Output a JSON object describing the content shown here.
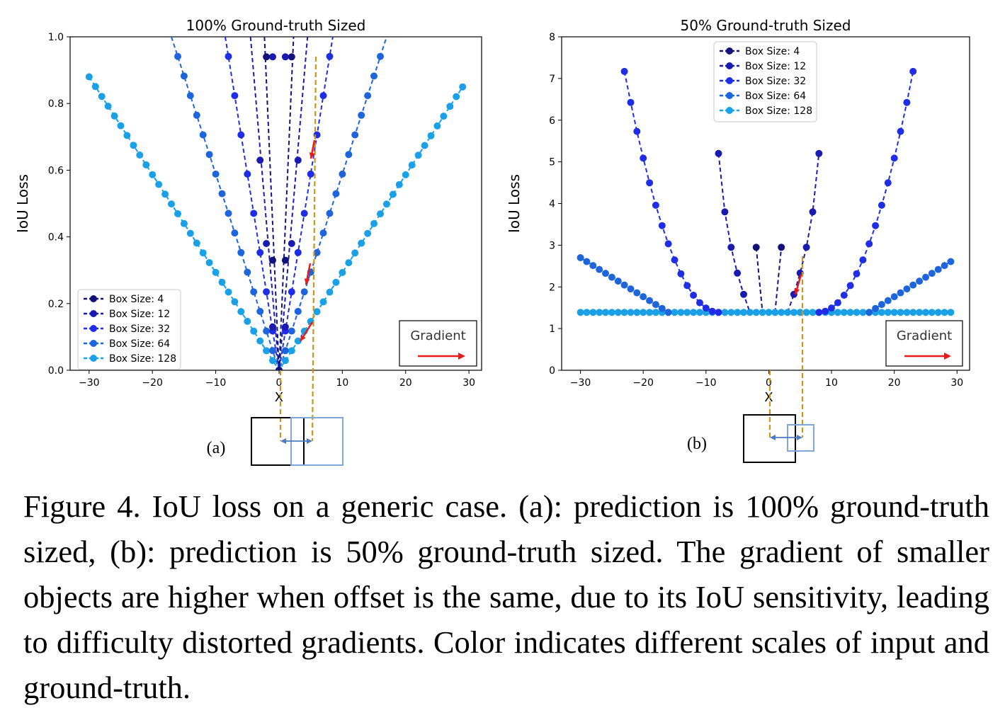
{
  "chart_data": [
    {
      "type": "line",
      "panel_label": "(a)",
      "title": "100% Ground-truth Sized",
      "xlabel": "",
      "ylabel": "IoU Loss",
      "xlim": [
        -33,
        32
      ],
      "ylim": [
        0,
        1.0
      ],
      "xticks": [
        -30,
        -20,
        -10,
        0,
        10,
        20,
        30
      ],
      "yticks": [
        0.0,
        0.2,
        0.4,
        0.6,
        0.8,
        1.0
      ],
      "xtick_labels": [
        "−30",
        "−20",
        "−10",
        "0",
        "10",
        "20",
        "30"
      ],
      "ytick_labels": [
        "0.0",
        "0.2",
        "0.4",
        "0.6",
        "0.8",
        "1.0"
      ],
      "x_marker": "X",
      "legend": {
        "position": "lower-left"
      },
      "series": [
        {
          "name": "Box Size: 4",
          "color": "#13127a",
          "points": [
            [
              -1,
              0.33
            ],
            [
              0,
              0.0
            ],
            [
              1,
              0.33
            ],
            [
              -2,
              0.94
            ],
            [
              2,
              0.94
            ]
          ],
          "line_top_x": [
            -2.3,
            2.3
          ]
        },
        {
          "name": "Box Size: 12",
          "color": "#1a1ab0",
          "points": [
            [
              -3,
              0.63
            ],
            [
              -2,
              0.38
            ],
            [
              -1,
              0.13
            ],
            [
              0,
              0.0
            ],
            [
              1,
              0.13
            ],
            [
              2,
              0.38
            ],
            [
              3,
              0.63
            ],
            [
              -1,
              0.94
            ],
            [
              1,
              0.94
            ]
          ],
          "line_top_x": [
            -4.5,
            4.5
          ]
        },
        {
          "name": "Box Size: 32",
          "color": "#1f2ee6",
          "points": [],
          "line_top_x": [
            -8.5,
            8.5
          ]
        },
        {
          "name": "Box Size: 64",
          "color": "#1e64dc",
          "points": [],
          "line_top_x": [
            -17,
            17
          ]
        },
        {
          "name": "Box Size: 128",
          "color": "#19a0e6",
          "points": [],
          "line_end": [
            [
              -30,
              0.88
            ],
            [
              29,
              0.85
            ]
          ]
        }
      ],
      "annotation": {
        "text": "Gradient",
        "arrow_color": "#e81a1a"
      }
    },
    {
      "type": "line",
      "panel_label": "(b)",
      "title": "50% Ground-truth Sized",
      "xlabel": "",
      "ylabel": "IoU Loss",
      "xlim": [
        -33,
        32
      ],
      "ylim": [
        0,
        8
      ],
      "xticks": [
        -30,
        -20,
        -10,
        0,
        10,
        20,
        30
      ],
      "yticks": [
        0,
        1,
        2,
        3,
        4,
        5,
        6,
        7,
        8
      ],
      "xtick_labels": [
        "−30",
        "−20",
        "−10",
        "0",
        "10",
        "20",
        "30"
      ],
      "ytick_labels": [
        "0",
        "1",
        "2",
        "3",
        "4",
        "5",
        "6",
        "7",
        "8"
      ],
      "x_marker": "X",
      "legend": {
        "position": "top-left"
      },
      "series": [
        {
          "name": "Box Size: 4",
          "color": "#13127a",
          "points": [
            [
              -2,
              2.95
            ],
            [
              2,
              2.95
            ]
          ]
        },
        {
          "name": "Box Size: 12",
          "color": "#1a1ab0",
          "points": [
            [
              -8,
              5.2
            ],
            [
              -7,
              3.8
            ],
            [
              -6,
              2.95
            ],
            [
              -5,
              2.33
            ],
            [
              -4,
              1.82
            ],
            [
              4,
              1.82
            ],
            [
              5,
              2.33
            ],
            [
              6,
              2.95
            ],
            [
              7,
              3.8
            ],
            [
              8,
              5.2
            ]
          ]
        },
        {
          "name": "Box Size: 32",
          "color": "#1f2ee6",
          "end_y": 7.17
        },
        {
          "name": "Box Size: 64",
          "color": "#1e64dc",
          "end_y": 2.7
        },
        {
          "name": "Box Size: 128",
          "color": "#19a0e6",
          "flat_y": 1.39
        }
      ],
      "annotation": {
        "text": "Gradient",
        "arrow_color": "#e81a1a"
      }
    }
  ],
  "caption": "Figure 4. IoU loss on a generic case.  (a): prediction is 100% ground-truth sized, (b): prediction is 50% ground-truth sized. The gradient of smaller objects are higher when offset is the same, due to its IoU sensitivity, leading to difficulty distorted gradients. Color indicates different scales of input and ground-truth."
}
